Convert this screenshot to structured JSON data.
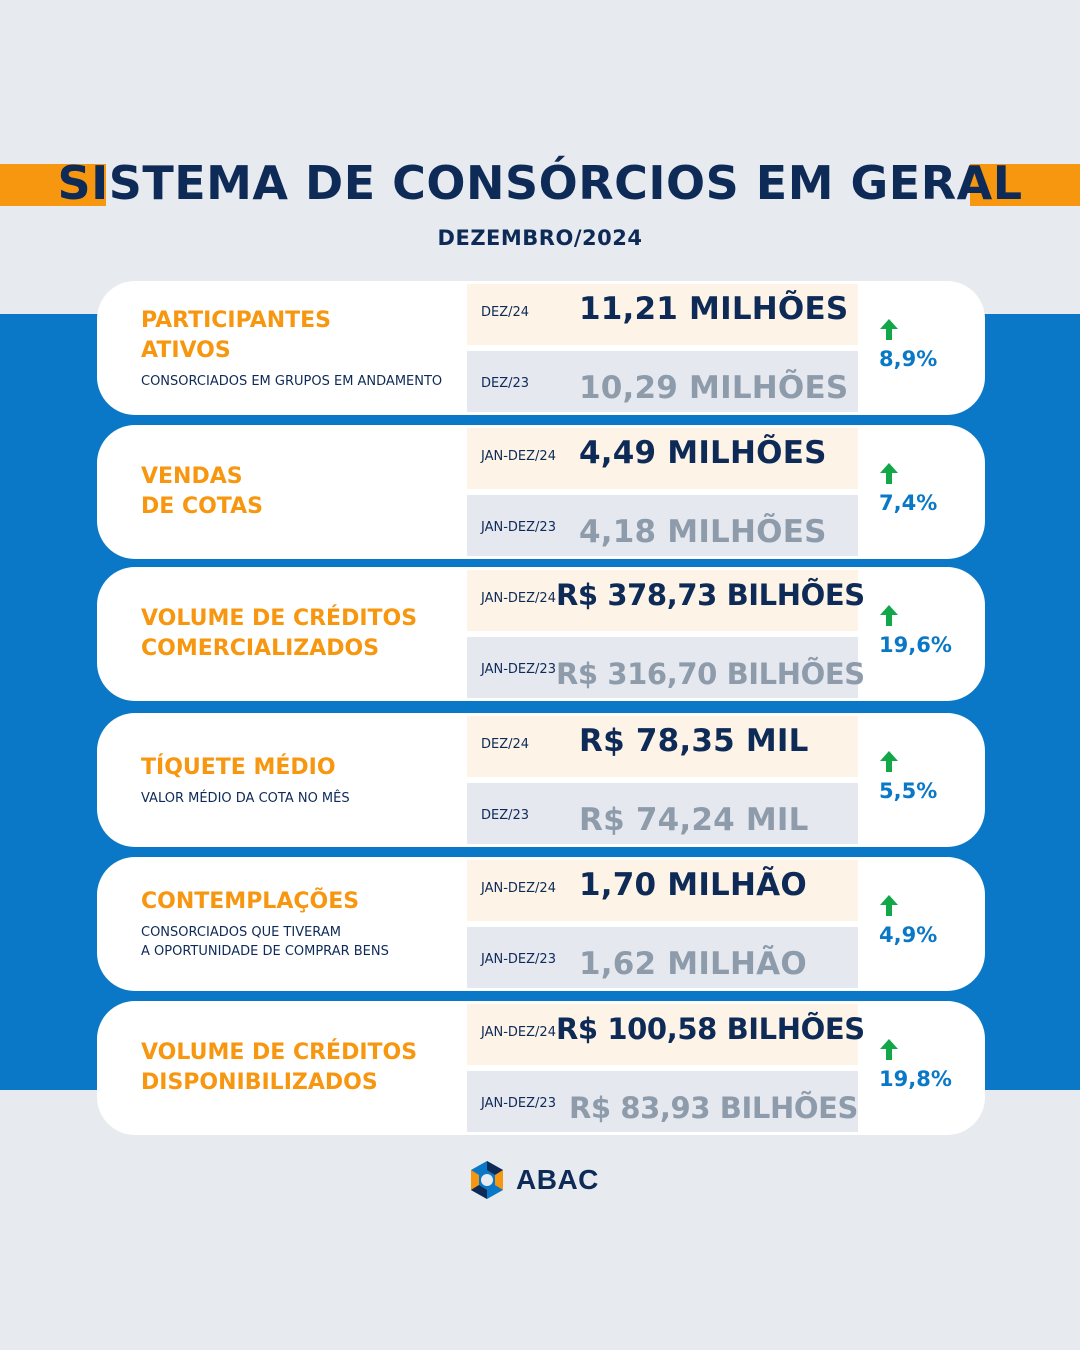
{
  "header": {
    "title": "SISTEMA DE CONSÓRCIOS EM GERAL",
    "subtitle": "DEZEMBRO/2024"
  },
  "colors": {
    "navy": "#0e2a57",
    "orange": "#f7960f",
    "blue": "#0a78c6",
    "green_arrow": "#12a84a",
    "muted_value": "#8d9bab"
  },
  "cards": [
    {
      "title": "PARTICIPANTES\nATIVOS",
      "description": "CONSORCIADOS EM GRUPOS EM ANDAMENTO",
      "current": {
        "period": "DEZ/24",
        "value": "11,21 MILHÕES"
      },
      "previous": {
        "period": "DEZ/23",
        "value": "10,29 MILHÕES"
      },
      "growth": "8,9%",
      "growth_icon": "arrow-up-icon"
    },
    {
      "title": "VENDAS\nDE COTAS",
      "description": "",
      "current": {
        "period": "JAN-DEZ/24",
        "value": "4,49 MILHÕES"
      },
      "previous": {
        "period": "JAN-DEZ/23",
        "value": "4,18 MILHÕES"
      },
      "growth": "7,4%",
      "growth_icon": "arrow-up-icon"
    },
    {
      "title": "VOLUME DE CRÉDITOS\nCOMERCIALIZADOS",
      "description": "",
      "current": {
        "period": "JAN-DEZ/24",
        "value": "R$ 378,73 BILHÕES"
      },
      "previous": {
        "period": "JAN-DEZ/23",
        "value": "R$ 316,70 BILHÕES"
      },
      "growth": "19,6%",
      "growth_icon": "arrow-up-icon"
    },
    {
      "title": "TÍQUETE MÉDIO",
      "description": "VALOR MÉDIO DA COTA NO MÊS",
      "current": {
        "period": "DEZ/24",
        "value": "R$ 78,35 MIL"
      },
      "previous": {
        "period": "DEZ/23",
        "value": "R$ 74,24 MIL"
      },
      "growth": "5,5%",
      "growth_icon": "arrow-up-icon"
    },
    {
      "title": "CONTEMPLAÇÕES",
      "description": "CONSORCIADOS QUE TIVERAM\nA OPORTUNIDADE DE COMPRAR BENS",
      "current": {
        "period": "JAN-DEZ/24",
        "value": "1,70 MILHÃO"
      },
      "previous": {
        "period": "JAN-DEZ/23",
        "value": "1,62 MILHÃO"
      },
      "growth": "4,9%",
      "growth_icon": "arrow-up-icon"
    },
    {
      "title": "VOLUME DE CRÉDITOS\nDISPONIBILIZADOS",
      "description": "",
      "current": {
        "period": "JAN-DEZ/24",
        "value": "R$ 100,58 BILHÕES"
      },
      "previous": {
        "period": "JAN-DEZ/23",
        "value": "R$ 83,93 BILHÕES"
      },
      "growth": "19,8%",
      "growth_icon": "arrow-up-icon"
    }
  ],
  "footer": {
    "logo_text": "ABAC",
    "logo_icon": "abac-logo-icon"
  }
}
